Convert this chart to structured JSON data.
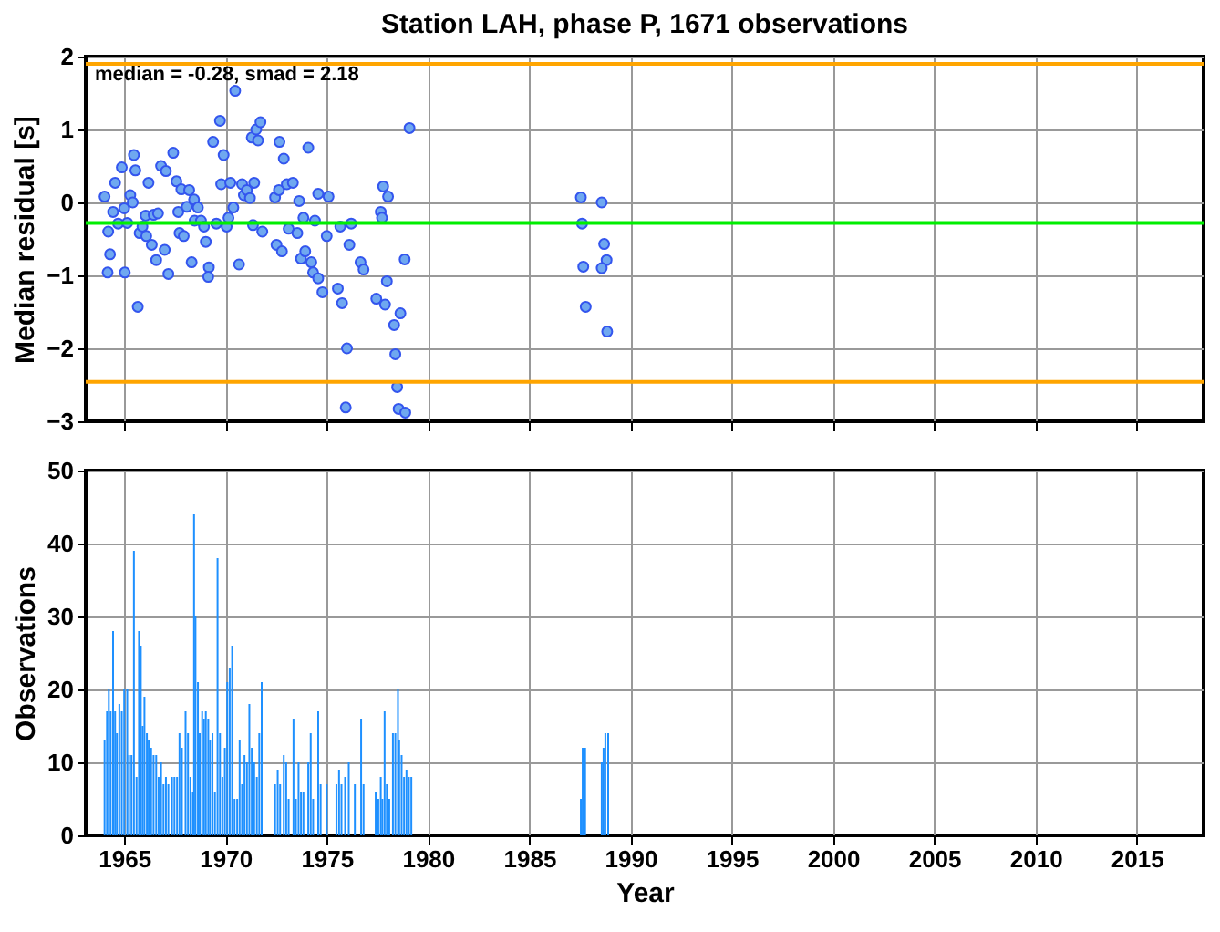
{
  "chart_data": [
    {
      "type": "scatter",
      "title": "Station LAH, phase P, 1671 observations",
      "ylabel": "Median residual [s]",
      "xlim": [
        1963.1,
        2018.3
      ],
      "xticks": [
        1965,
        1970,
        1975,
        1980,
        1985,
        1990,
        1995,
        2000,
        2005,
        2010,
        2015
      ],
      "ylim": [
        -3,
        2
      ],
      "yticks": [
        -3,
        -2,
        -1,
        0,
        1,
        2
      ],
      "grid": true,
      "tick_labels": "y",
      "marker": "circle",
      "annotations": [
        "median = -0.28, smad = 2.18"
      ],
      "ref_lines": [
        {
          "axis": "y",
          "value": -0.28,
          "label": null,
          "color": "#00ee00"
        },
        {
          "axis": "y",
          "value": 1.9,
          "label": null,
          "color": "#ffa500"
        },
        {
          "axis": "y",
          "value": -2.46,
          "label": null,
          "color": "#ffa500"
        }
      ],
      "series": [
        {
          "color": "#6fa8f0",
          "x": [
            1964.03,
            1964.3,
            1964.18,
            1964.21,
            1964.45,
            1964.55,
            1964.7,
            1964.88,
            1965.0,
            1965.03,
            1965.15,
            1965.3,
            1965.42,
            1965.48,
            1965.55,
            1965.67,
            1965.76,
            1965.9,
            1966.06,
            1966.09,
            1966.2,
            1966.36,
            1966.45,
            1966.58,
            1966.67,
            1966.82,
            1967.0,
            1967.06,
            1967.18,
            1967.42,
            1967.58,
            1967.67,
            1967.73,
            1967.82,
            1967.94,
            1968.09,
            1968.21,
            1968.33,
            1968.45,
            1968.48,
            1968.64,
            1968.79,
            1968.94,
            1969.03,
            1969.18,
            1969.15,
            1969.39,
            1969.55,
            1969.73,
            1969.79,
            1969.91,
            1970.06,
            1970.15,
            1970.24,
            1970.39,
            1970.48,
            1970.67,
            1970.82,
            1970.91,
            1971.06,
            1971.21,
            1971.3,
            1971.42,
            1971.52,
            1971.61,
            1971.73,
            1971.36,
            1971.82,
            1972.45,
            1972.52,
            1972.67,
            1972.64,
            1972.79,
            1972.88,
            1973.03,
            1973.12,
            1973.33,
            1973.64,
            1973.55,
            1973.73,
            1973.85,
            1974.09,
            1973.94,
            1974.24,
            1974.33,
            1974.42,
            1974.58,
            1974.58,
            1974.79,
            1975.09,
            1975.0,
            1975.55,
            1975.67,
            1975.76,
            1976.12,
            1976.0,
            1976.21,
            1975.94,
            1976.67,
            1976.82,
            1977.67,
            1977.73,
            1977.79,
            1978.03,
            1977.45,
            1977.88,
            1977.97,
            1978.64,
            1978.33,
            1978.39,
            1978.48,
            1978.55,
            1978.88,
            1978.85,
            1979.09,
            1987.55,
            1988.58,
            1987.61,
            1988.7,
            1988.82,
            1988.58,
            1987.67,
            1987.79,
            1988.85
          ],
          "values": [
            0.08,
            -0.71,
            -0.96,
            -0.4,
            -0.13,
            0.27,
            -0.29,
            0.48,
            -0.08,
            -0.96,
            -0.28,
            0.1,
            0.0,
            0.65,
            0.44,
            -1.43,
            -0.42,
            -0.33,
            -0.18,
            -0.46,
            0.27,
            -0.58,
            -0.17,
            -0.79,
            -0.15,
            0.5,
            -0.65,
            0.43,
            -0.98,
            0.68,
            0.29,
            -0.13,
            -0.42,
            0.18,
            -0.46,
            -0.06,
            0.17,
            -0.82,
            0.04,
            -0.25,
            -0.07,
            -0.25,
            -0.33,
            -0.54,
            -0.89,
            -1.02,
            0.83,
            -0.29,
            1.12,
            0.25,
            0.65,
            -0.33,
            -0.21,
            0.27,
            -0.07,
            1.53,
            -0.85,
            0.25,
            0.1,
            0.17,
            0.06,
            0.89,
            0.27,
            1.0,
            0.85,
            1.1,
            -0.31,
            -0.4,
            0.07,
            -0.58,
            0.83,
            0.17,
            -0.67,
            0.6,
            0.25,
            -0.36,
            0.27,
            0.02,
            -0.42,
            -0.77,
            -0.21,
            0.75,
            -0.67,
            -0.82,
            -0.96,
            -0.25,
            0.12,
            -1.04,
            -1.23,
            0.08,
            -0.46,
            -1.18,
            -0.33,
            -1.38,
            -0.58,
            -2.0,
            -0.29,
            -2.81,
            -0.82,
            -0.92,
            -0.13,
            -0.21,
            0.22,
            0.08,
            -1.32,
            -1.4,
            -1.08,
            -1.52,
            -1.68,
            -2.08,
            -2.53,
            -2.83,
            -2.88,
            -0.78,
            1.02,
            0.07,
            0.0,
            -0.29,
            -0.57,
            -0.79,
            -0.9,
            -0.88,
            -1.43,
            -1.77
          ]
        }
      ]
    },
    {
      "type": "bar",
      "xlabel": "Year",
      "ylabel": "Observations",
      "xlim": [
        1963.1,
        2018.3
      ],
      "xticks": [
        1965,
        1970,
        1975,
        1980,
        1985,
        1990,
        1995,
        2000,
        2005,
        2010,
        2015
      ],
      "ylim": [
        0,
        50
      ],
      "yticks": [
        0,
        10,
        20,
        30,
        40,
        50
      ],
      "grid": true,
      "x": [
        1964.03,
        1964.15,
        1964.24,
        1964.33,
        1964.45,
        1964.55,
        1964.64,
        1964.76,
        1964.88,
        1965.0,
        1965.15,
        1965.24,
        1965.36,
        1965.48,
        1965.61,
        1965.73,
        1965.82,
        1965.91,
        1966.0,
        1966.12,
        1966.21,
        1966.33,
        1966.45,
        1966.58,
        1966.7,
        1966.82,
        1966.94,
        1967.06,
        1967.18,
        1967.36,
        1967.48,
        1967.61,
        1967.73,
        1967.85,
        1968.03,
        1968.15,
        1968.27,
        1968.39,
        1968.45,
        1968.52,
        1968.64,
        1968.73,
        1968.85,
        1968.94,
        1969.03,
        1969.15,
        1969.24,
        1969.36,
        1969.48,
        1969.61,
        1969.73,
        1969.85,
        1969.97,
        1970.09,
        1970.21,
        1970.33,
        1970.45,
        1970.58,
        1970.7,
        1970.82,
        1970.94,
        1971.06,
        1971.18,
        1971.3,
        1971.42,
        1971.55,
        1971.67,
        1971.79,
        1972.45,
        1972.58,
        1972.7,
        1972.88,
        1973.0,
        1973.12,
        1973.36,
        1973.48,
        1973.61,
        1973.73,
        1973.85,
        1974.09,
        1974.21,
        1974.33,
        1974.58,
        1974.7,
        1975.0,
        1975.48,
        1975.61,
        1975.73,
        1975.91,
        1976.09,
        1976.39,
        1976.7,
        1976.82,
        1977.42,
        1977.55,
        1977.67,
        1977.75,
        1977.86,
        1977.97,
        1978.09,
        1978.27,
        1978.39,
        1978.52,
        1978.58,
        1978.7,
        1978.82,
        1978.94,
        1979.06,
        1979.18,
        1987.55,
        1987.64,
        1987.76,
        1988.58,
        1988.67,
        1988.76,
        1988.9
      ],
      "series": [
        {
          "color": "#1e90ff",
          "values": [
            13,
            17,
            20,
            17,
            28,
            17,
            14,
            18,
            17,
            20,
            20,
            11,
            11,
            39,
            8,
            28,
            26,
            15,
            19,
            14,
            13,
            12,
            11,
            11,
            8,
            10,
            7,
            8,
            7,
            8,
            8,
            8,
            14,
            12,
            17,
            14,
            8,
            6,
            44,
            30,
            21,
            14,
            17,
            16,
            17,
            16,
            13,
            14,
            6,
            38,
            14,
            8,
            12,
            21,
            23,
            26,
            5,
            5,
            13,
            7,
            11,
            10,
            18,
            12,
            10,
            8,
            14,
            21,
            7,
            9,
            7,
            11,
            10,
            5,
            16,
            5,
            10,
            6,
            6,
            10,
            14,
            5,
            17,
            7,
            7,
            7,
            9,
            7,
            8,
            10,
            7,
            16,
            7,
            6,
            5,
            8,
            5,
            17,
            7,
            5,
            14,
            14,
            20,
            13,
            11,
            8,
            9,
            8,
            8,
            5,
            12,
            12,
            10,
            12,
            14,
            14
          ]
        }
      ]
    }
  ]
}
